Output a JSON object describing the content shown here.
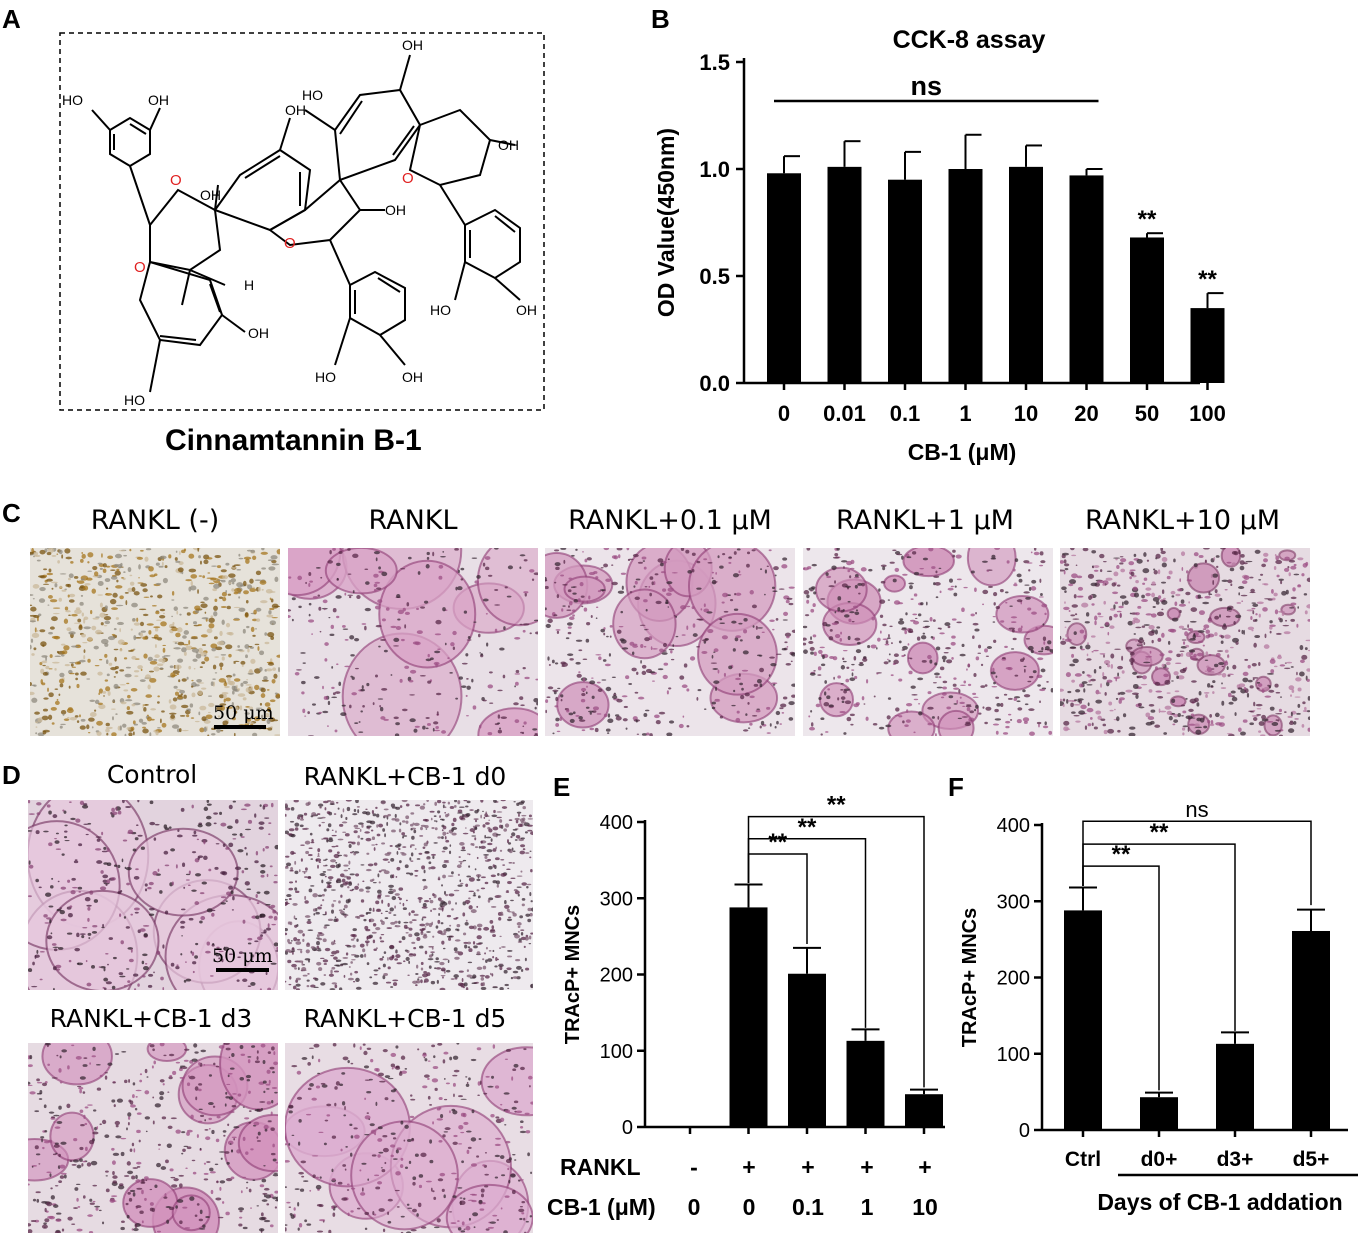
{
  "panels": {
    "a": "A",
    "b": "B",
    "c": "C",
    "d": "D",
    "e": "E",
    "f": "F"
  },
  "structure": {
    "compound_name": "Cinnamtannin B-1",
    "hydroxyl": "OH",
    "hydroxyl_left": "HO",
    "oxygen": "O",
    "hydrogen": "H"
  },
  "panel_c": {
    "labels": [
      "RANKL (-)",
      "RANKL",
      "RANKL+0.1 μM",
      "RANKL+1 μM",
      "RANKL+10 μM"
    ],
    "scale_bar": "50 μm"
  },
  "panel_d": {
    "labels": [
      "Control",
      "RANKL+CB-1 d0",
      "RANKL+CB-1 d3",
      "RANKL+CB-1 d5"
    ],
    "scale_bar": "50 μm"
  },
  "panel_e_table": {
    "rankl_label": "RANKL",
    "rankl_values": [
      "-",
      "+",
      "+",
      "+",
      "+"
    ],
    "cb1_label": "CB-1 (μM)",
    "cb1_values": [
      "0",
      "0",
      "0.1",
      "1",
      "10"
    ]
  },
  "chart_data": [
    {
      "id": "B",
      "type": "bar",
      "title": "CCK-8 assay",
      "xlabel": "CB-1 (μM)",
      "ylabel": "OD Value(450nm)",
      "categories": [
        "0",
        "0.01",
        "0.1",
        "1",
        "10",
        "20",
        "50",
        "100"
      ],
      "values": [
        0.98,
        1.01,
        0.95,
        1.0,
        1.01,
        0.97,
        0.68,
        0.35
      ],
      "errors": [
        0.08,
        0.12,
        0.13,
        0.16,
        0.1,
        0.03,
        0.02,
        0.07
      ],
      "ylim": [
        0,
        1.5
      ],
      "yticks": [
        "0.0",
        "0.5",
        "1.0",
        "1.5"
      ],
      "bar_marks": [
        "",
        "",
        "",
        "",
        "",
        "",
        "**",
        "**"
      ],
      "group_bracket": {
        "label": "ns",
        "from": 0,
        "to": 5
      }
    },
    {
      "id": "E",
      "type": "bar",
      "ylabel": "TRAcP+ MNCs",
      "categories": [
        "",
        "",
        "",
        "",
        ""
      ],
      "values": [
        0,
        288,
        201,
        113,
        43
      ],
      "errors": [
        0,
        30,
        34,
        15,
        6
      ],
      "ylim": [
        0,
        400
      ],
      "yticks": [
        "0",
        "100",
        "200",
        "300",
        "400"
      ],
      "comparisons": [
        {
          "from": 1,
          "to": 2,
          "label": "**"
        },
        {
          "from": 1,
          "to": 3,
          "label": "**"
        },
        {
          "from": 1,
          "to": 4,
          "label": "**"
        }
      ]
    },
    {
      "id": "F",
      "type": "bar",
      "ylabel": "TRAcP+ MNCs",
      "xlabel": "Days of CB-1 addation",
      "categories": [
        "Ctrl",
        "d0+",
        "d3+",
        "d5+"
      ],
      "values": [
        288,
        43,
        113,
        261
      ],
      "errors": [
        30,
        6,
        15,
        28
      ],
      "ylim": [
        0,
        400
      ],
      "yticks": [
        "0",
        "100",
        "200",
        "300",
        "400"
      ],
      "comparisons": [
        {
          "from": 0,
          "to": 1,
          "label": "**"
        },
        {
          "from": 0,
          "to": 2,
          "label": "**"
        },
        {
          "from": 0,
          "to": 3,
          "label": "ns"
        }
      ]
    }
  ]
}
